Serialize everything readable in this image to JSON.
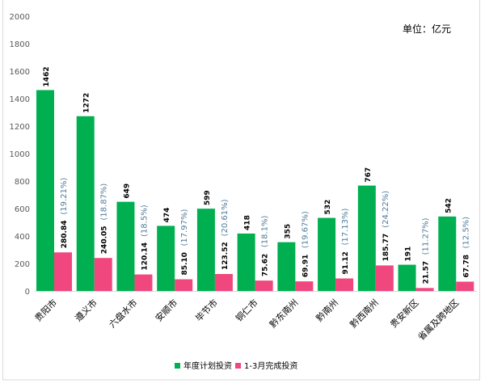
{
  "chart_data": {
    "type": "bar",
    "title": "",
    "unit_label": "单位：亿元",
    "xlabel": "",
    "ylabel": "",
    "ylim": [
      0,
      2000
    ],
    "yticks": [
      0,
      200,
      400,
      600,
      800,
      1000,
      1200,
      1400,
      1600,
      1800,
      2000
    ],
    "grid": false,
    "legend_position": "bottom",
    "categories": [
      "贵阳市",
      "遵义市",
      "六盘水市",
      "安顺市",
      "毕节市",
      "铜仁市",
      "黔东南州",
      "黔南州",
      "黔西南州",
      "贵安新区",
      "省属及跨地区"
    ],
    "series": [
      {
        "name": "年度计划投资",
        "color": "#00b050",
        "values": [
          1462,
          1272,
          649,
          474,
          599,
          418,
          355,
          532,
          767,
          191,
          542
        ],
        "labels": [
          "1462",
          "1272",
          "649",
          "474",
          "599",
          "418",
          "355",
          "532",
          "767",
          "191",
          "542"
        ]
      },
      {
        "name": "1-3月完成投资",
        "color": "#f0477f",
        "values": [
          280.84,
          240.05,
          120.14,
          85.1,
          123.52,
          75.62,
          69.91,
          91.12,
          185.77,
          21.57,
          67.78
        ],
        "labels": [
          "280.84",
          "240.05",
          "120.14",
          "85.10",
          "123.52",
          "75.62",
          "69.91",
          "91.12",
          "185.77",
          "21.57",
          "67.78"
        ]
      }
    ],
    "percent_labels": [
      "(19.21%)",
      "(18.87%)",
      "(18.5%)",
      "(17.97%)",
      "(20.61%)",
      "(18.1%)",
      "(19.67%)",
      "(17.13%)",
      "(24.22%)",
      "(11.27%)",
      "(12.5%)"
    ],
    "percent_color": "#4f7a9a"
  }
}
